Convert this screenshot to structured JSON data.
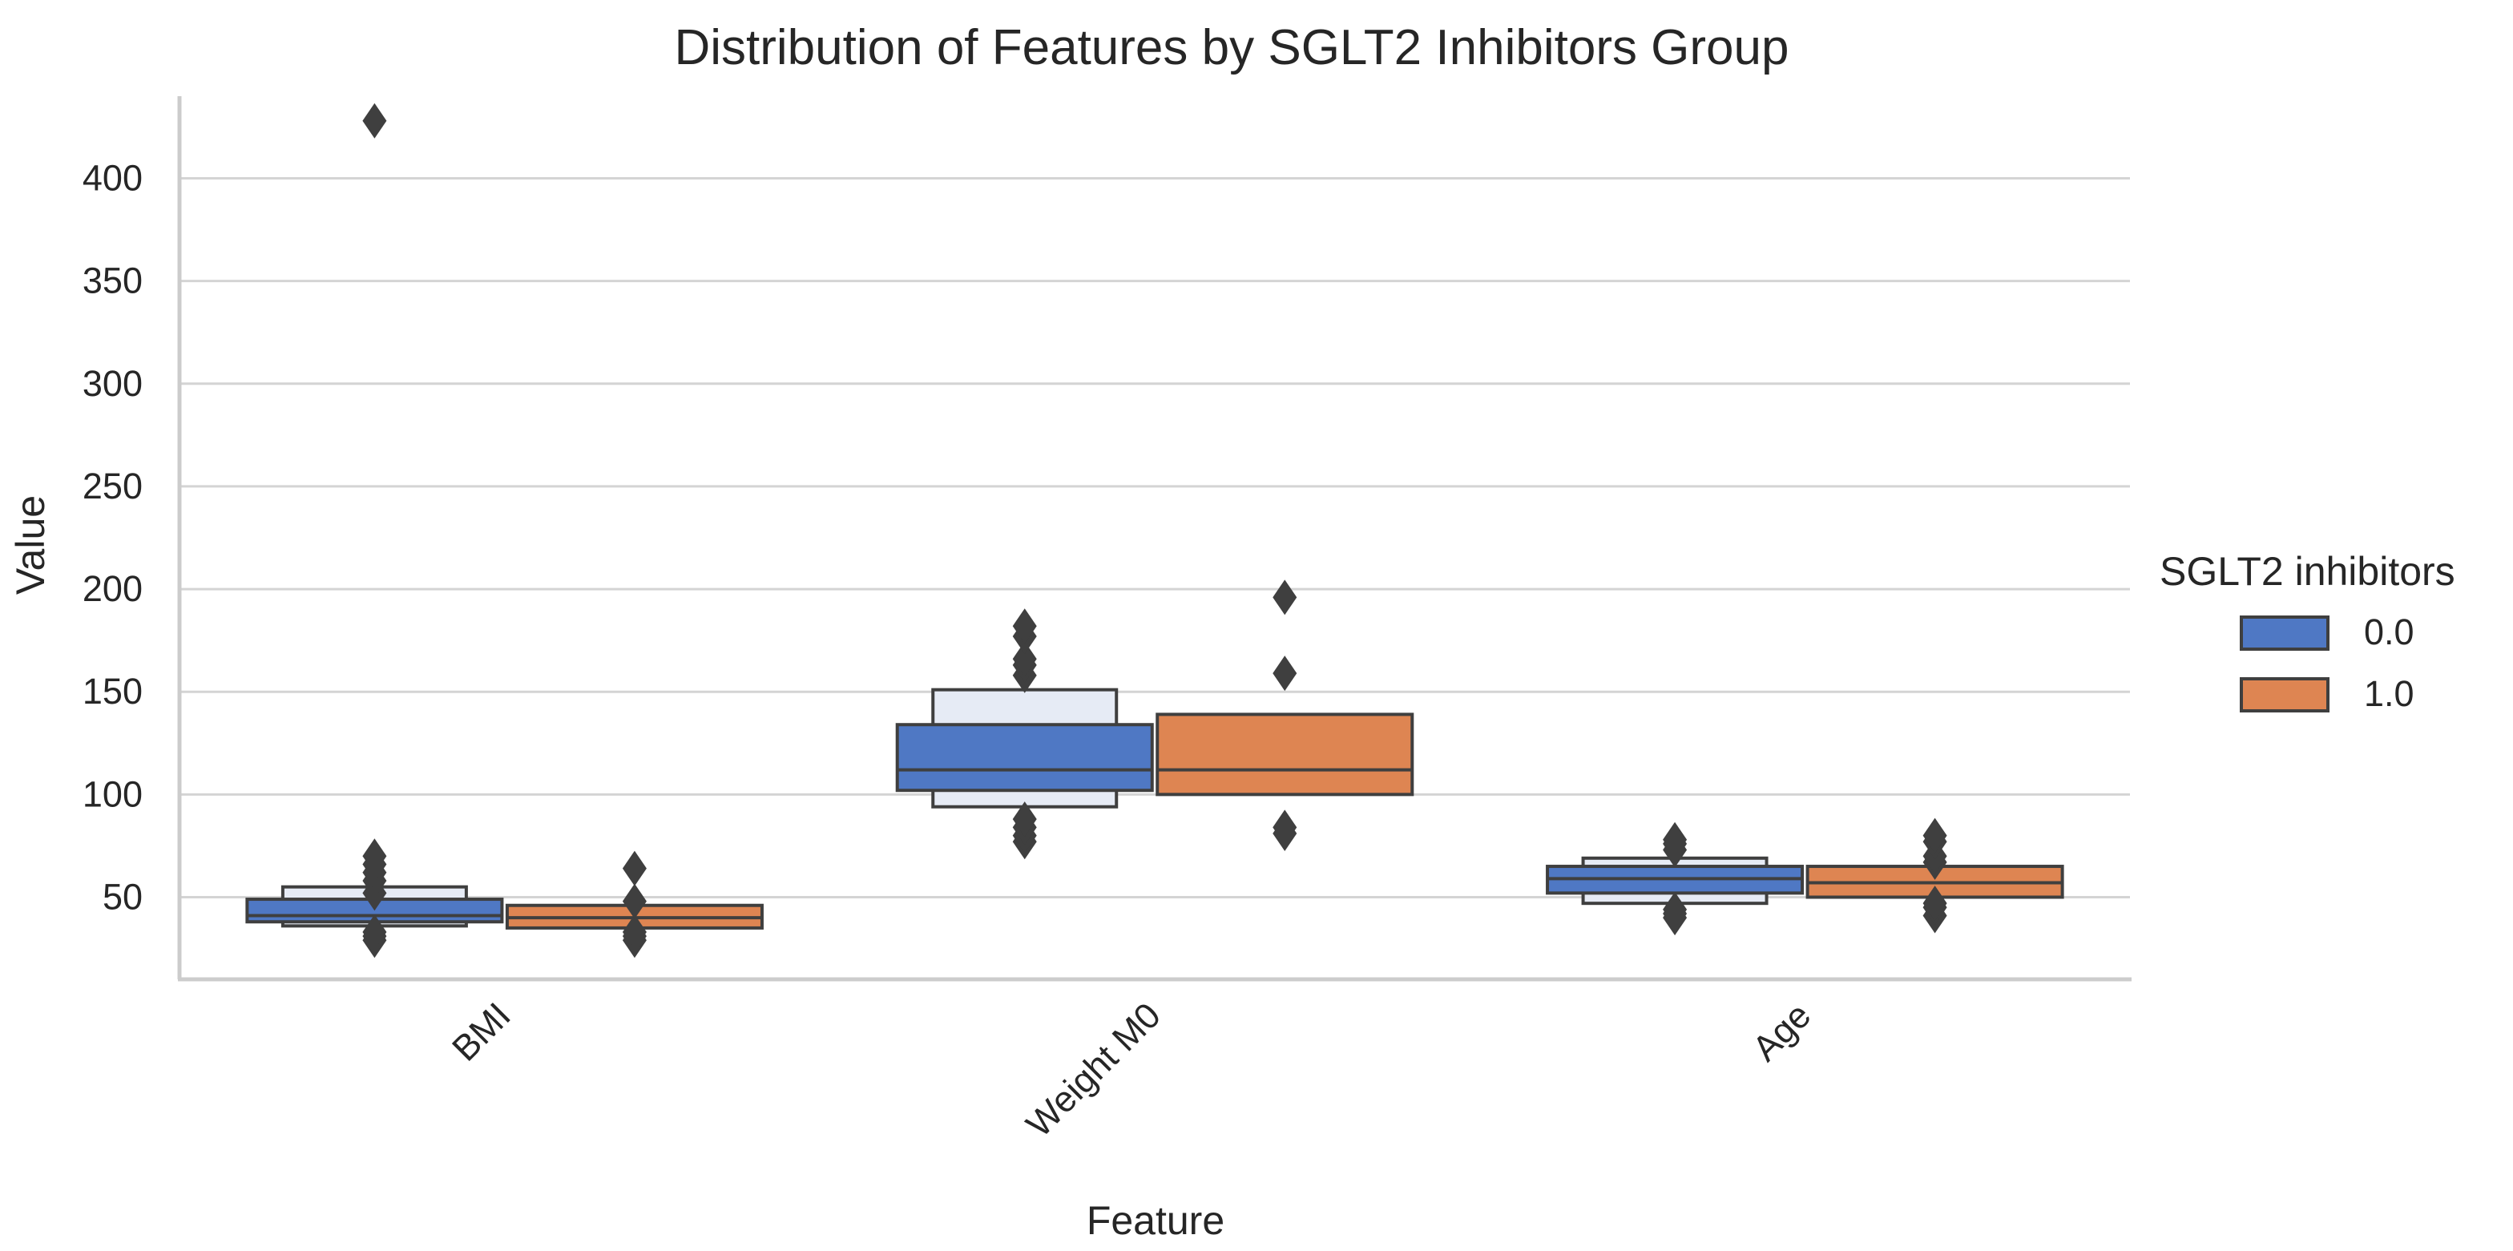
{
  "chart_data": {
    "type": "boxen",
    "title": "Distribution of Features by SGLT2 Inhibitors Group",
    "xlabel": "Feature",
    "ylabel": "Value",
    "ylim": [
      10,
      440
    ],
    "yticks": [
      50,
      100,
      150,
      200,
      250,
      300,
      350,
      400
    ],
    "grid": true,
    "legend": {
      "title": "SGLT2 inhibitors",
      "placement": "center-right",
      "entries": [
        {
          "label": "0.0",
          "color": "#4f78c4"
        },
        {
          "label": "1.0",
          "color": "#de8552"
        }
      ]
    },
    "categories": [
      "BMI",
      "Weight M0",
      "Age"
    ],
    "series": [
      {
        "name": "0.0",
        "color": "#4f78c4",
        "light_color": "#e6ebf5",
        "values": [
          {
            "category": "BMI",
            "median": 41,
            "levels": [
              [
                38,
                49
              ],
              [
                36,
                55
              ]
            ],
            "outliers": [
              29,
              31,
              33,
              52,
              58,
              62,
              66,
              70,
              428
            ]
          },
          {
            "category": "Weight M0",
            "median": 112,
            "levels": [
              [
                102,
                134
              ],
              [
                94,
                151
              ]
            ],
            "outliers": [
              77,
              80,
              84,
              88,
              158,
              163,
              166,
              177,
              182
            ]
          },
          {
            "category": "Age",
            "median": 59,
            "levels": [
              [
                52,
                65
              ],
              [
                47,
                69
              ]
            ],
            "outliers": [
              40,
              42,
              44,
              73,
              76,
              78
            ]
          }
        ]
      },
      {
        "name": "1.0",
        "color": "#de8552",
        "light_color": "#f6dccd",
        "values": [
          {
            "category": "BMI",
            "median": 40,
            "levels": [
              [
                35,
                46
              ]
            ],
            "outliers": [
              29,
              31,
              33,
              48,
              64
            ]
          },
          {
            "category": "Weight M0",
            "median": 112,
            "levels": [
              [
                100,
                139
              ]
            ],
            "outliers": [
              81,
              84,
              159,
              196
            ]
          },
          {
            "category": "Age",
            "median": 57,
            "levels": [
              [
                50,
                65
              ]
            ],
            "outliers": [
              41,
              45,
              47,
              67,
              70,
              77,
              80
            ]
          }
        ]
      }
    ]
  }
}
